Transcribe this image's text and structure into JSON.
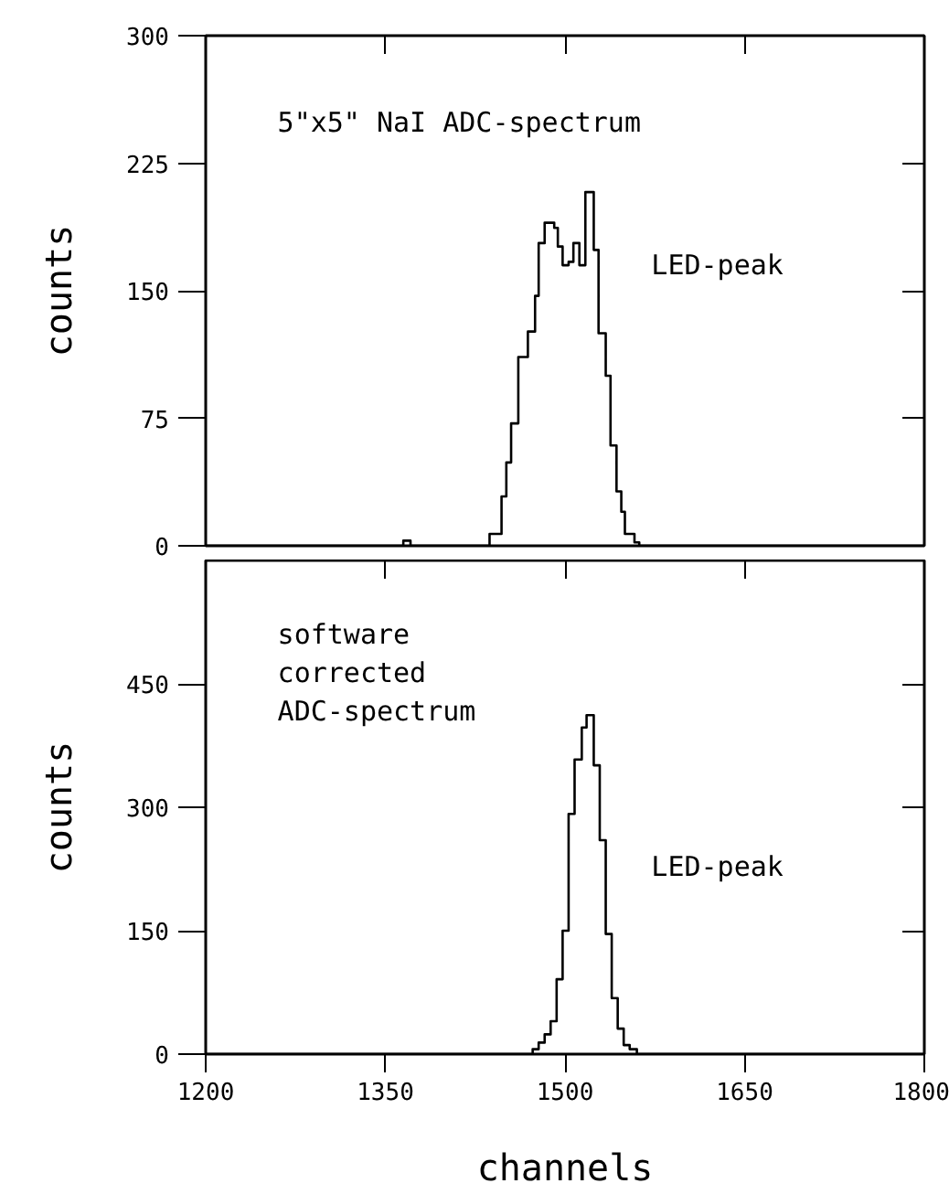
{
  "chart_data": [
    {
      "type": "histogram",
      "ylabel": "counts",
      "annotations": [
        "5\"x5\" NaI   ADC-spectrum",
        "LED-peak"
      ],
      "bins": [
        1200,
        1365,
        1371,
        1437,
        1447,
        1451,
        1455,
        1461,
        1469,
        1475,
        1478,
        1483,
        1491,
        1494,
        1498,
        1503,
        1507,
        1512,
        1517,
        1524,
        1528,
        1534,
        1538,
        1543,
        1547,
        1550,
        1558,
        1562,
        1800
      ],
      "values": [
        0,
        3,
        0,
        7,
        29,
        49,
        72,
        111,
        126,
        147,
        178,
        190,
        187,
        176,
        165,
        167,
        178,
        165,
        208,
        174,
        125,
        100,
        59,
        32,
        20,
        7,
        2,
        0
      ],
      "color": "#000000",
      "xlim": [
        1200,
        1800
      ],
      "xticks": [
        1200,
        1350,
        1500,
        1650,
        1800
      ],
      "ylim": [
        0,
        300
      ],
      "yticks": [
        0,
        75,
        150,
        225,
        300
      ],
      "tick_labels": "y",
      "grid": false
    },
    {
      "type": "histogram",
      "xlabel": "channels",
      "ylabel": "counts",
      "annotations": [
        "software\ncorrected\nADC-spectrum",
        "LED-peak"
      ],
      "bins": [
        1200,
        1473,
        1478,
        1483,
        1488,
        1493,
        1498,
        1503,
        1508,
        1514,
        1518,
        1524,
        1529,
        1534,
        1539,
        1544,
        1549,
        1554,
        1560,
        1800
      ],
      "values": [
        0,
        6,
        14,
        24,
        40,
        91,
        150,
        292,
        358,
        397,
        412,
        351,
        260,
        146,
        68,
        31,
        11,
        6,
        0
      ],
      "color": "#000000",
      "xlim": [
        1200,
        1800
      ],
      "xticks": [
        1200,
        1350,
        1500,
        1650,
        1800
      ],
      "ylim": [
        0,
        600
      ],
      "yticks": [
        0,
        150,
        300,
        450
      ],
      "grid": false
    }
  ]
}
